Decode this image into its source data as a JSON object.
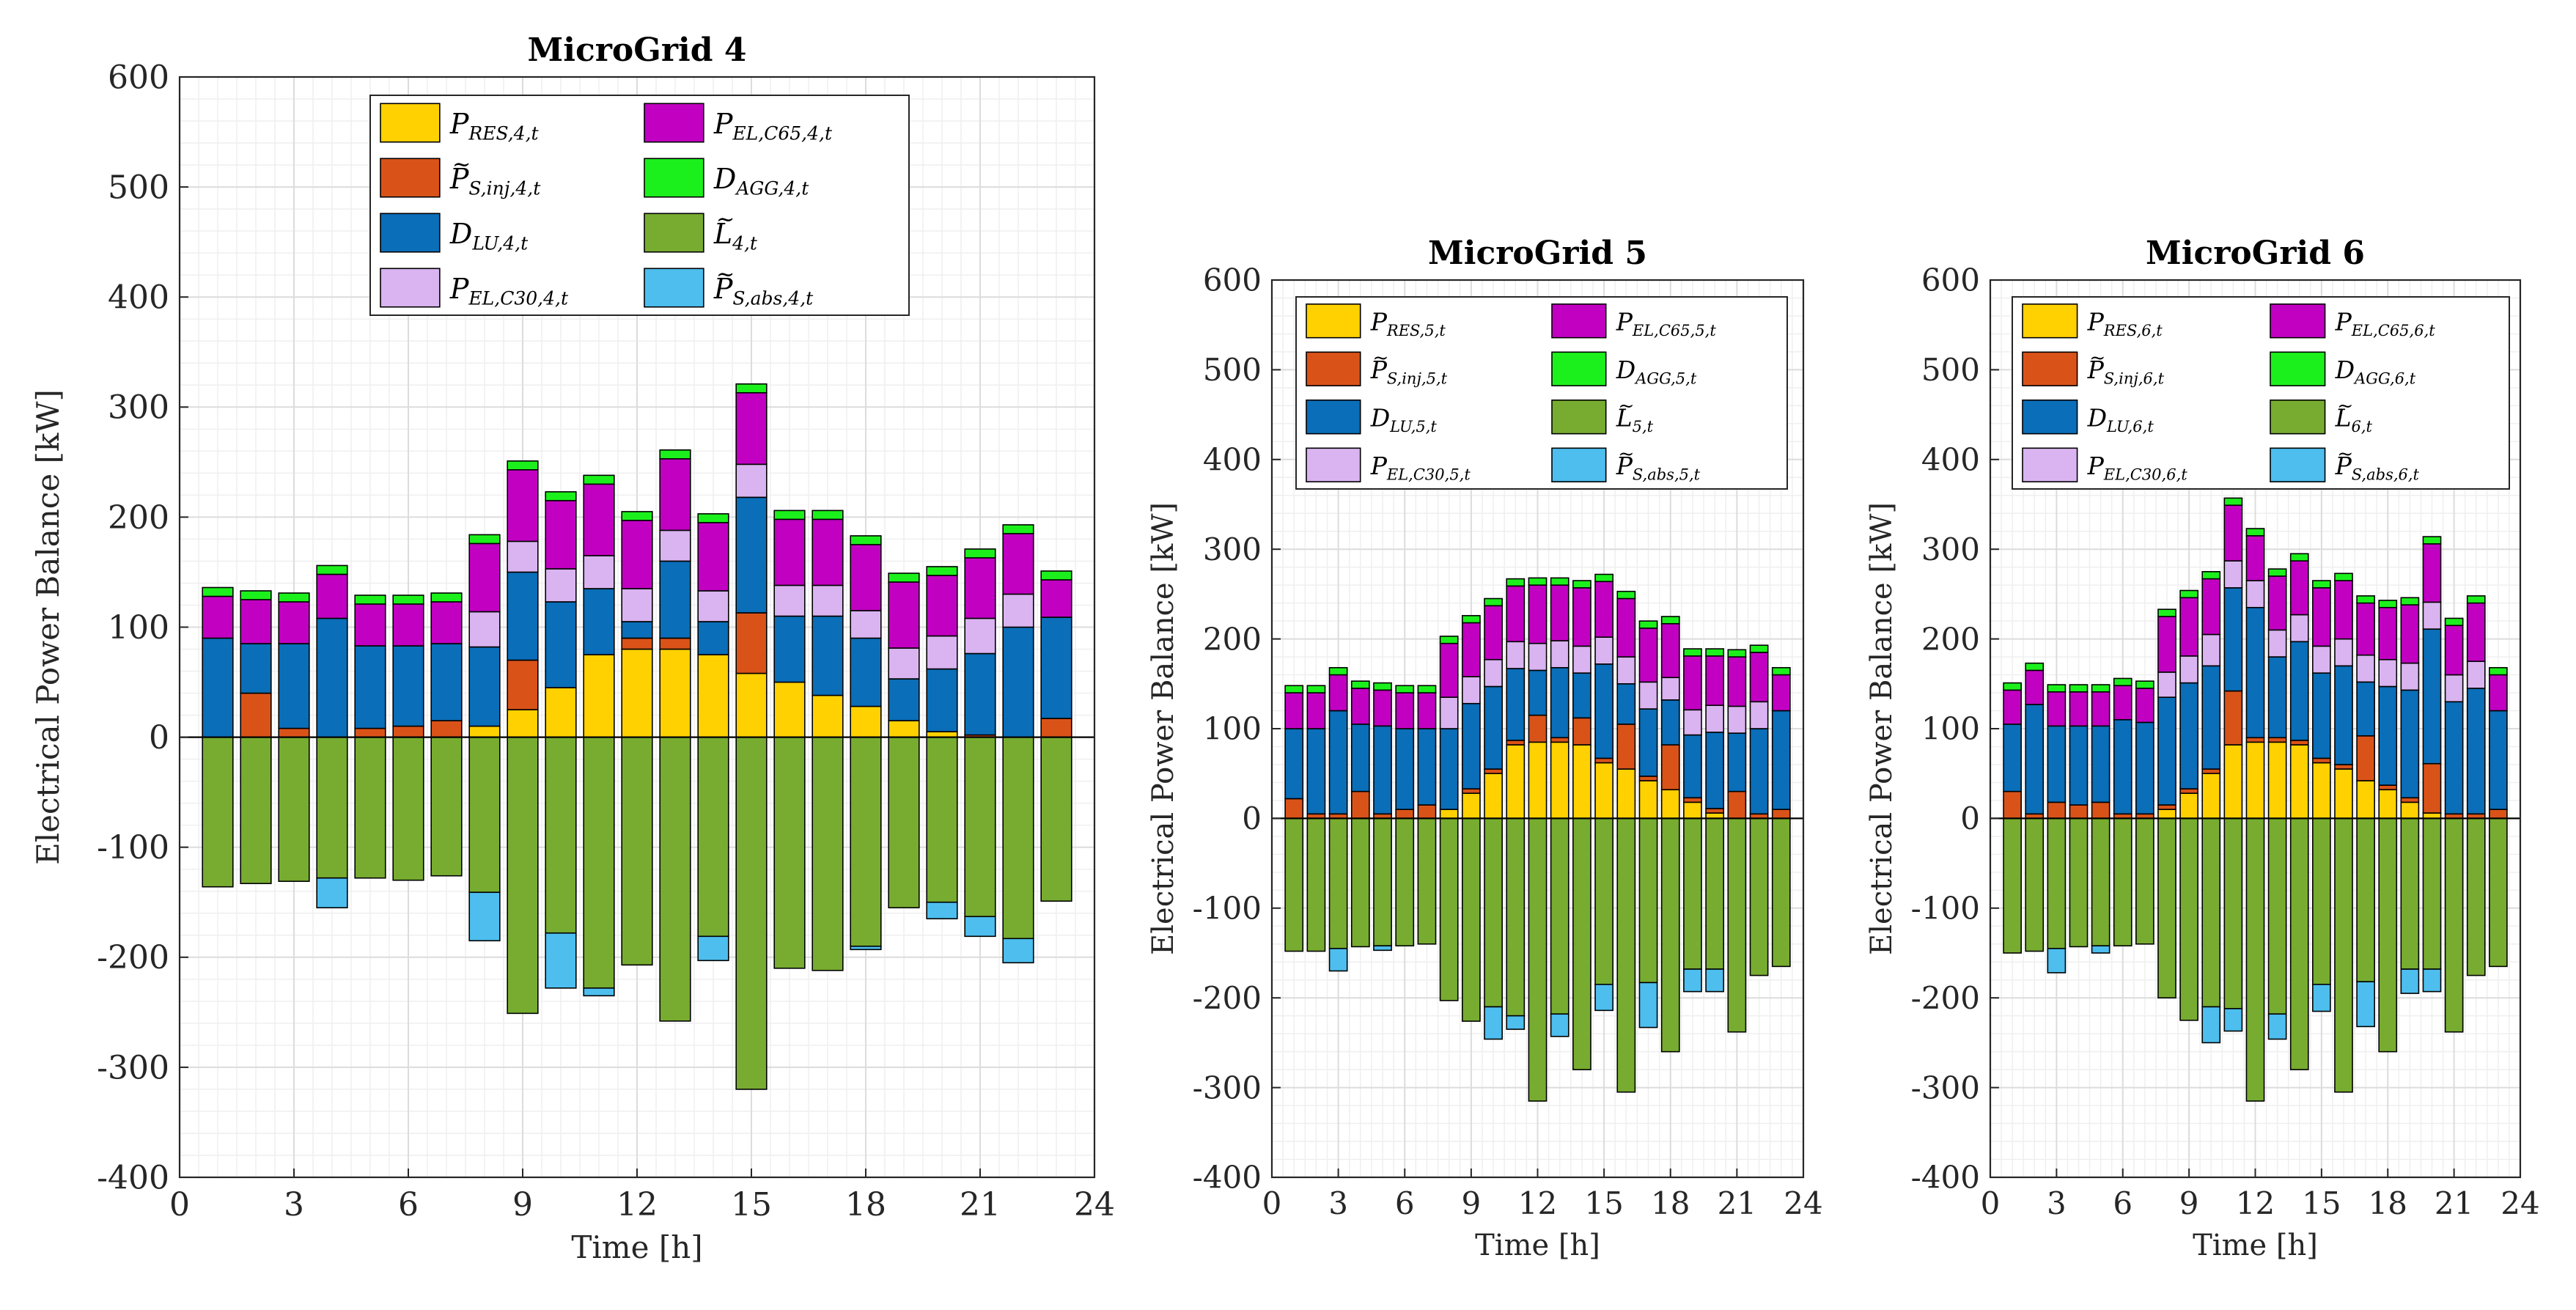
{
  "colors": {
    "p_res": "#ffd100",
    "p_s_inj": "#d95319",
    "d_lu": "#0a6eb8",
    "p_el_c30": "#d9b4f0",
    "p_el_c65": "#c200c2",
    "d_agg": "#1cf01c",
    "l_neg": "#77ac30",
    "p_s_abs": "#4dbeee",
    "grid_major": "#dcdcdc",
    "grid_minor": "#efefef",
    "axis": "#262626"
  },
  "chart_data": [
    {
      "type": "bar",
      "title": "MicroGrid 4",
      "xlabel": "Time [h]",
      "ylabel": "Electrical Power Balance [kW]",
      "xlim": [
        0,
        24
      ],
      "ylim": [
        -400,
        600
      ],
      "xticks": [
        0,
        3,
        6,
        9,
        12,
        15,
        18,
        21,
        24
      ],
      "yticks": [
        -400,
        -300,
        -200,
        -100,
        0,
        100,
        200,
        300,
        400,
        500,
        600
      ],
      "legend_location": "top",
      "x": [
        1,
        2,
        3,
        4,
        5,
        6,
        7,
        8,
        9,
        10,
        11,
        12,
        13,
        14,
        15,
        16,
        17,
        18,
        19,
        20,
        21,
        22,
        23
      ],
      "positive_series": [
        {
          "name": "P_RES",
          "legend": [
            "P",
            "RES,4,t"
          ],
          "tilde": false,
          "color_key": "p_res",
          "values": [
            0,
            0,
            0,
            0,
            0,
            0,
            0,
            10,
            25,
            45,
            75,
            80,
            80,
            75,
            58,
            50,
            38,
            28,
            15,
            5,
            0,
            0,
            0
          ]
        },
        {
          "name": "P_S_inj",
          "legend": [
            "P",
            "S,inj,4,t"
          ],
          "tilde": true,
          "color_key": "p_s_inj",
          "values": [
            0,
            40,
            8,
            0,
            8,
            10,
            15,
            0,
            45,
            0,
            0,
            10,
            10,
            0,
            55,
            0,
            0,
            0,
            0,
            0,
            2,
            0,
            17
          ]
        },
        {
          "name": "D_LU",
          "legend": [
            "D",
            "LU,4,t"
          ],
          "tilde": false,
          "color_key": "d_lu",
          "values": [
            90,
            45,
            77,
            108,
            75,
            73,
            70,
            72,
            80,
            78,
            60,
            15,
            70,
            30,
            105,
            60,
            72,
            62,
            38,
            57,
            74,
            100,
            92
          ]
        },
        {
          "name": "P_EL_C30",
          "legend": [
            "P",
            "EL,C30,4,t"
          ],
          "tilde": false,
          "color_key": "p_el_c30",
          "values": [
            0,
            0,
            0,
            0,
            0,
            0,
            0,
            32,
            28,
            30,
            30,
            30,
            28,
            28,
            30,
            28,
            28,
            25,
            28,
            30,
            32,
            30,
            0
          ]
        },
        {
          "name": "P_EL_C65",
          "legend": [
            "P",
            "EL,C65,4,t"
          ],
          "tilde": false,
          "color_key": "p_el_c65",
          "values": [
            38,
            40,
            38,
            40,
            38,
            38,
            38,
            62,
            65,
            62,
            65,
            62,
            65,
            62,
            65,
            60,
            60,
            60,
            60,
            55,
            55,
            55,
            34
          ]
        },
        {
          "name": "D_AGG",
          "legend": [
            "D",
            "AGG,4,t"
          ],
          "tilde": false,
          "color_key": "d_agg",
          "values": [
            8,
            8,
            8,
            8,
            8,
            8,
            8,
            8,
            8,
            8,
            8,
            8,
            8,
            8,
            8,
            8,
            8,
            8,
            8,
            8,
            8,
            8,
            8
          ]
        }
      ],
      "negative_series": [
        {
          "name": "L",
          "legend": [
            "L",
            "4,t"
          ],
          "tilde": true,
          "color_key": "l_neg",
          "values": [
            -136,
            -133,
            -131,
            -128,
            -128,
            -130,
            -126,
            -141,
            -251,
            -178,
            -228,
            -207,
            -258,
            -181,
            -320,
            -210,
            -212,
            -190,
            -155,
            -150,
            -163,
            -183,
            -149
          ]
        },
        {
          "name": "P_S_abs",
          "legend": [
            "P",
            "S,abs,4,t"
          ],
          "tilde": true,
          "color_key": "p_s_abs",
          "values": [
            0,
            0,
            0,
            -27,
            0,
            0,
            0,
            -44,
            0,
            -50,
            -7,
            0,
            0,
            -22,
            0,
            0,
            0,
            -3,
            0,
            -15,
            -18,
            -22,
            0
          ]
        }
      ]
    },
    {
      "type": "bar",
      "title": "MicroGrid 5",
      "xlabel": "Time [h]",
      "ylabel": "Electrical Power Balance [kW]",
      "xlim": [
        0,
        24
      ],
      "ylim": [
        -400,
        600
      ],
      "xticks": [
        0,
        3,
        6,
        9,
        12,
        15,
        18,
        21,
        24
      ],
      "yticks": [
        -400,
        -300,
        -200,
        -100,
        0,
        100,
        200,
        300,
        400,
        500,
        600
      ],
      "legend_location": "top",
      "x": [
        1,
        2,
        3,
        4,
        5,
        6,
        7,
        8,
        9,
        10,
        11,
        12,
        13,
        14,
        15,
        16,
        17,
        18,
        19,
        20,
        21,
        22,
        23
      ],
      "positive_series": [
        {
          "name": "P_RES",
          "legend": [
            "P",
            "RES,5,t"
          ],
          "tilde": false,
          "color_key": "p_res",
          "values": [
            0,
            0,
            0,
            0,
            0,
            0,
            0,
            10,
            28,
            50,
            82,
            85,
            85,
            82,
            62,
            55,
            42,
            32,
            18,
            6,
            0,
            0,
            0
          ]
        },
        {
          "name": "P_S_inj",
          "legend": [
            "P",
            "S,inj,5,t"
          ],
          "tilde": true,
          "color_key": "p_s_inj",
          "values": [
            22,
            5,
            5,
            30,
            5,
            10,
            15,
            0,
            5,
            5,
            5,
            30,
            5,
            30,
            5,
            50,
            5,
            50,
            5,
            5,
            30,
            5,
            10
          ]
        },
        {
          "name": "D_LU",
          "legend": [
            "D",
            "LU,5,t"
          ],
          "tilde": false,
          "color_key": "d_lu",
          "values": [
            78,
            95,
            115,
            75,
            98,
            90,
            85,
            90,
            95,
            92,
            80,
            50,
            78,
            50,
            105,
            45,
            75,
            50,
            70,
            85,
            65,
            95,
            110
          ]
        },
        {
          "name": "P_EL_C30",
          "legend": [
            "P",
            "EL,C30,5,t"
          ],
          "tilde": false,
          "color_key": "p_el_c30",
          "values": [
            0,
            0,
            0,
            0,
            0,
            0,
            0,
            35,
            30,
            30,
            30,
            30,
            30,
            30,
            30,
            30,
            30,
            25,
            28,
            30,
            30,
            30,
            0
          ]
        },
        {
          "name": "P_EL_C65",
          "legend": [
            "P",
            "EL,C65,5,t"
          ],
          "tilde": false,
          "color_key": "p_el_c65",
          "values": [
            40,
            40,
            40,
            40,
            40,
            40,
            40,
            60,
            60,
            60,
            62,
            65,
            62,
            65,
            62,
            65,
            60,
            60,
            60,
            55,
            55,
            55,
            40
          ]
        },
        {
          "name": "D_AGG",
          "legend": [
            "D",
            "AGG,5,t"
          ],
          "tilde": false,
          "color_key": "d_agg",
          "values": [
            8,
            8,
            8,
            8,
            8,
            8,
            8,
            8,
            8,
            8,
            8,
            8,
            8,
            8,
            8,
            8,
            8,
            8,
            8,
            8,
            8,
            8,
            8
          ]
        }
      ],
      "negative_series": [
        {
          "name": "L",
          "legend": [
            "L",
            "5,t"
          ],
          "tilde": true,
          "color_key": "l_neg",
          "values": [
            -148,
            -148,
            -145,
            -143,
            -142,
            -142,
            -140,
            -203,
            -226,
            -210,
            -220,
            -315,
            -218,
            -280,
            -185,
            -305,
            -183,
            -260,
            -168,
            -168,
            -238,
            -175,
            -165
          ]
        },
        {
          "name": "P_S_abs",
          "legend": [
            "P",
            "S,abs,5,t"
          ],
          "tilde": true,
          "color_key": "p_s_abs",
          "values": [
            0,
            0,
            -25,
            0,
            -5,
            0,
            0,
            0,
            0,
            -36,
            -15,
            0,
            -25,
            0,
            -29,
            0,
            -50,
            0,
            -25,
            -25,
            0,
            0,
            0
          ]
        }
      ]
    },
    {
      "type": "bar",
      "title": "MicroGrid 6",
      "xlabel": "Time [h]",
      "ylabel": "Electrical Power Balance [kW]",
      "xlim": [
        0,
        24
      ],
      "ylim": [
        -400,
        600
      ],
      "xticks": [
        0,
        3,
        6,
        9,
        12,
        15,
        18,
        21,
        24
      ],
      "yticks": [
        -400,
        -300,
        -200,
        -100,
        0,
        100,
        200,
        300,
        400,
        500,
        600
      ],
      "legend_location": "top",
      "x": [
        1,
        2,
        3,
        4,
        5,
        6,
        7,
        8,
        9,
        10,
        11,
        12,
        13,
        14,
        15,
        16,
        17,
        18,
        19,
        20,
        21,
        22,
        23
      ],
      "positive_series": [
        {
          "name": "P_RES",
          "legend": [
            "P",
            "RES,6,t"
          ],
          "tilde": false,
          "color_key": "p_res",
          "values": [
            0,
            0,
            0,
            0,
            0,
            0,
            0,
            10,
            28,
            50,
            82,
            85,
            85,
            82,
            62,
            55,
            42,
            32,
            18,
            6,
            0,
            0,
            0
          ]
        },
        {
          "name": "P_S_inj",
          "legend": [
            "P",
            "S,inj,6,t"
          ],
          "tilde": true,
          "color_key": "p_s_inj",
          "values": [
            30,
            5,
            18,
            15,
            18,
            5,
            5,
            5,
            5,
            5,
            60,
            5,
            5,
            5,
            5,
            5,
            50,
            5,
            5,
            55,
            5,
            5,
            10
          ]
        },
        {
          "name": "D_LU",
          "legend": [
            "D",
            "LU,6,t"
          ],
          "tilde": false,
          "color_key": "d_lu",
          "values": [
            75,
            122,
            85,
            88,
            85,
            105,
            102,
            120,
            118,
            115,
            115,
            145,
            90,
            110,
            95,
            110,
            60,
            110,
            120,
            150,
            125,
            140,
            110
          ]
        },
        {
          "name": "P_EL_C30",
          "legend": [
            "P",
            "EL,C30,6,t"
          ],
          "tilde": false,
          "color_key": "p_el_c30",
          "values": [
            0,
            0,
            0,
            0,
            0,
            0,
            0,
            28,
            30,
            35,
            30,
            30,
            30,
            30,
            30,
            30,
            30,
            30,
            30,
            30,
            30,
            30,
            0
          ]
        },
        {
          "name": "P_EL_C65",
          "legend": [
            "P",
            "EL,C65,6,t"
          ],
          "tilde": false,
          "color_key": "p_el_c65",
          "values": [
            38,
            38,
            38,
            38,
            38,
            38,
            38,
            62,
            65,
            62,
            62,
            50,
            60,
            60,
            65,
            65,
            58,
            58,
            65,
            65,
            55,
            65,
            40
          ]
        },
        {
          "name": "D_AGG",
          "legend": [
            "D",
            "AGG,6,t"
          ],
          "tilde": false,
          "color_key": "d_agg",
          "values": [
            8,
            8,
            8,
            8,
            8,
            8,
            8,
            8,
            8,
            8,
            8,
            8,
            8,
            8,
            8,
            8,
            8,
            8,
            8,
            8,
            8,
            8,
            8
          ]
        }
      ],
      "negative_series": [
        {
          "name": "L",
          "legend": [
            "L",
            "6,t"
          ],
          "tilde": true,
          "color_key": "l_neg",
          "values": [
            -150,
            -148,
            -145,
            -143,
            -142,
            -142,
            -140,
            -200,
            -225,
            -210,
            -212,
            -315,
            -218,
            -280,
            -185,
            -305,
            -182,
            -260,
            -168,
            -168,
            -238,
            -175,
            -165
          ]
        },
        {
          "name": "P_S_abs",
          "legend": [
            "P",
            "S,abs,6,t"
          ],
          "tilde": true,
          "color_key": "p_s_abs",
          "values": [
            0,
            0,
            -27,
            0,
            -8,
            0,
            0,
            0,
            0,
            -40,
            -25,
            0,
            -28,
            0,
            -30,
            0,
            -50,
            0,
            -27,
            -25,
            0,
            0,
            0
          ]
        }
      ]
    }
  ]
}
